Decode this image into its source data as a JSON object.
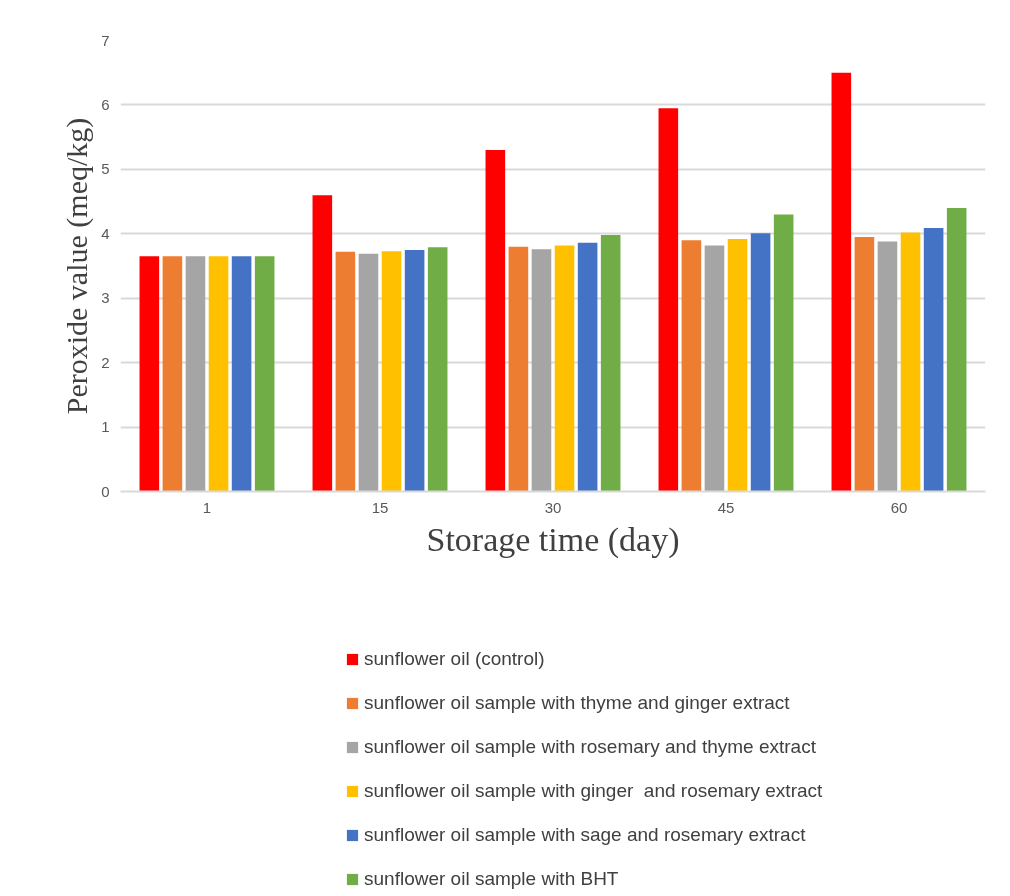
{
  "chart_data": {
    "type": "bar",
    "xlabel": "Storage time (day)",
    "ylabel": "Peroxide value (meq/kg)",
    "categories": [
      "1",
      "15",
      "30",
      "45",
      "60"
    ],
    "series": [
      {
        "name": "sunflower oil (control)",
        "color": "#ff0000",
        "values": [
          3.65,
          4.6,
          5.3,
          5.95,
          6.5
        ]
      },
      {
        "name": "sunflower oil sample with thyme and ginger extract",
        "color": "#ed7d31",
        "values": [
          3.65,
          3.72,
          3.8,
          3.9,
          3.95
        ]
      },
      {
        "name": "sunflower oil sample with rosemary and thyme extract",
        "color": "#a5a5a5",
        "values": [
          3.65,
          3.69,
          3.76,
          3.82,
          3.88
        ]
      },
      {
        "name": "sunflower oil sample with ginger  and rosemary extract",
        "color": "#ffc000",
        "values": [
          3.65,
          3.73,
          3.82,
          3.92,
          4.02
        ]
      },
      {
        "name": "sunflower oil sample with sage and rosemary extract",
        "color": "#4472c4",
        "values": [
          3.65,
          3.75,
          3.86,
          4.01,
          4.09
        ]
      },
      {
        "name": "sunflower oil sample with BHT",
        "color": "#70ad47",
        "values": [
          3.65,
          3.79,
          3.98,
          4.3,
          4.4
        ]
      }
    ],
    "ylim": [
      0,
      7
    ],
    "yticks": [
      0,
      1,
      2,
      3,
      4,
      5,
      6,
      7
    ],
    "grid": "y",
    "legend": "bottom"
  }
}
